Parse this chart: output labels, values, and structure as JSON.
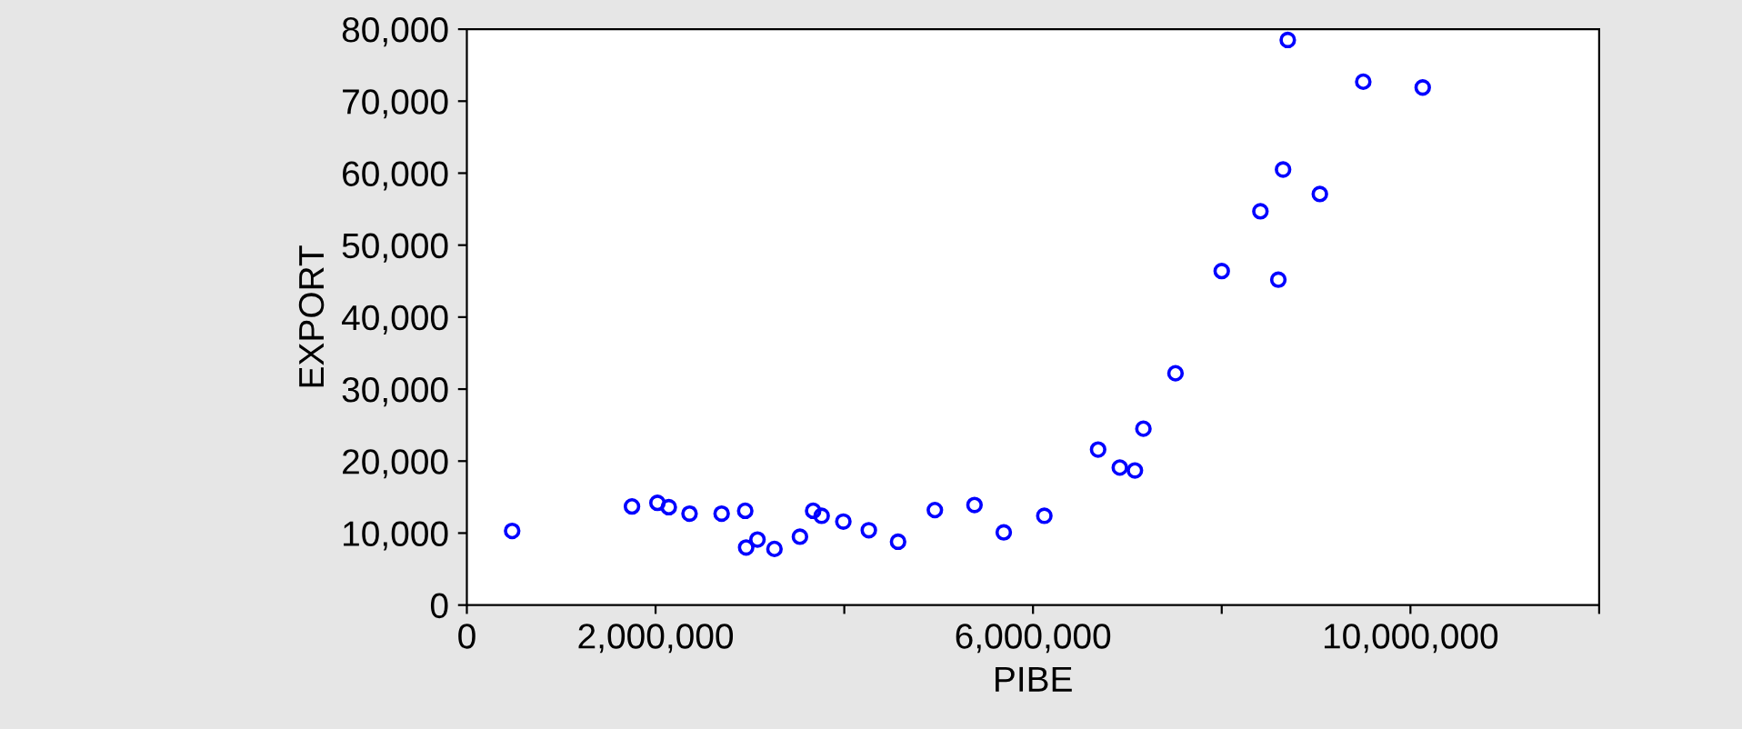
{
  "chart_data": {
    "type": "scatter",
    "xlabel": "PIBE",
    "ylabel": "EXPORT",
    "marker": "circle",
    "grid": false,
    "legend": false,
    "xlim": [
      0,
      12000000
    ],
    "xticks": [
      0,
      {
        "value": 2000000,
        "label": "2,000,000"
      },
      {
        "value": 4000000,
        "label": null
      },
      {
        "value": 6000000,
        "label": "6,000,000"
      },
      {
        "value": 8000000,
        "label": null
      },
      {
        "value": 10000000,
        "label": "10,000,000"
      },
      {
        "value": 12000000,
        "label": null
      }
    ],
    "ylim": [
      0,
      80000
    ],
    "yticks": [
      0,
      {
        "value": 10000,
        "label": "10,000"
      },
      {
        "value": 20000,
        "label": "20,000"
      },
      {
        "value": 30000,
        "label": "30,000"
      },
      {
        "value": 40000,
        "label": "40,000"
      },
      {
        "value": 50000,
        "label": "50,000"
      },
      {
        "value": 60000,
        "label": "60,000"
      },
      {
        "value": 70000,
        "label": "70,000"
      },
      {
        "value": 80000,
        "label": "80,000"
      }
    ],
    "series": [
      {
        "color": "#0000ff",
        "x": [
          480000,
          1750000,
          2020000,
          2140000,
          2360000,
          2700000,
          2950000,
          2960000,
          3080000,
          3260000,
          3530000,
          3670000,
          3760000,
          3990000,
          4260000,
          4570000,
          4960000,
          5380000,
          5690000,
          6120000,
          6690000,
          6920000,
          7080000,
          7170000,
          7510000,
          8000000,
          8600000,
          8410000,
          8650000,
          9040000,
          8700000,
          9500000,
          10130000
        ],
        "values": [
          10300,
          13700,
          14200,
          13600,
          12700,
          12700,
          13100,
          8000,
          9100,
          7800,
          9500,
          13100,
          12400,
          11600,
          10400,
          8800,
          13200,
          13900,
          10100,
          12400,
          21600,
          19100,
          18700,
          24500,
          32200,
          46400,
          45200,
          54700,
          60500,
          57100,
          78500,
          72700,
          71900
        ]
      }
    ]
  }
}
